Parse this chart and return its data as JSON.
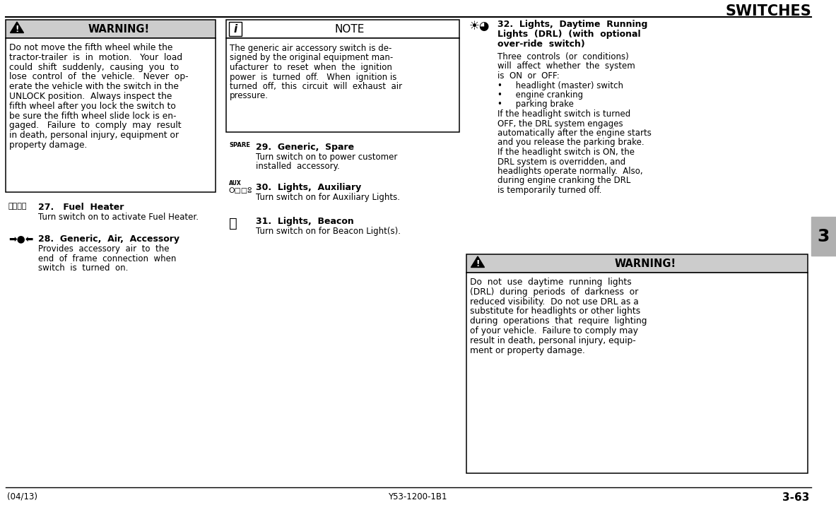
{
  "title": "SWITCHES",
  "bg_color": "#ffffff",
  "footer_left": "(04/13)",
  "footer_center": "Y53-1200-1B1",
  "footer_right": "3-63",
  "tab_label": "3",
  "col1_warning_title": "WARNING!",
  "col1_warning_text_lines": [
    "Do not move the fifth wheel while the",
    "tractor-trailer  is  in  motion.   Your  load",
    "could  shift  suddenly,  causing  you  to",
    "lose  control  of  the  vehicle.   Never  op-",
    "erate the vehicle with the switch in the",
    "UNLOCK position.  Always inspect the",
    "fifth wheel after you lock the switch to",
    "be sure the fifth wheel slide lock is en-",
    "gaged.   Failure  to  comply  may  result",
    "in death, personal injury, equipment or",
    "property damage."
  ],
  "item27_title": "27.   Fuel  Heater",
  "item27_text": "Turn switch on to activate Fuel Heater.",
  "item28_title": "28.  Generic,  Air,  Accessory",
  "item28_text_lines": [
    "Provides  accessory  air  to  the",
    "end  of  frame  connection  when",
    "switch  is  turned  on."
  ],
  "note_title": "NOTE",
  "note_text_lines": [
    "The generic air accessory switch is de-",
    "signed by the original equipment man-",
    "ufacturer  to  reset  when  the  ignition",
    "power  is  turned  off.   When  ignition is",
    "turned  off,  this  circuit  will  exhaust  air",
    "pressure."
  ],
  "spare_label": "SPARE",
  "item29_title": "29.  Generic,  Spare",
  "item29_text_lines": [
    "Turn switch on to power customer",
    "installed  accessory."
  ],
  "item30_title": "30.  Lights,  Auxiliary",
  "item30_text": "Turn switch on for Auxiliary Lights.",
  "item31_title": "31.  Lights,  Beacon",
  "item31_text": "Turn switch on for Beacon Light(s).",
  "col3_item32_title_lines": [
    "32.  Lights,  Daytime  Running",
    "Lights  (DRL)  (with  optional",
    "over-ride  switch)"
  ],
  "col3_item32_text_lines": [
    "Three  controls  (or  conditions)",
    "will  affect  whether  the  system",
    "is  ON  or  OFF:",
    "•     headlight (master) switch",
    "•     engine cranking",
    "•     parking brake",
    "If the headlight switch is turned",
    "OFF, the DRL system engages",
    "automatically after the engine starts",
    "and you release the parking brake.",
    "If the headlight switch is ON, the",
    "DRL system is overridden, and",
    "headlights operate normally.  Also,",
    "during engine cranking the DRL",
    "is temporarily turned off."
  ],
  "col3_warning_title": "WARNING!",
  "col3_warning_text_lines": [
    "Do  not  use  daytime  running  lights",
    "(DRL)  during  periods  of  darkness  or",
    "reduced visibility.  Do not use DRL as a",
    "substitute for headlights or other lights",
    "during  operations  that  require  lighting",
    "of your vehicle.  Failure to comply may",
    "result in death, personal injury, equip-",
    "ment or property damage."
  ]
}
